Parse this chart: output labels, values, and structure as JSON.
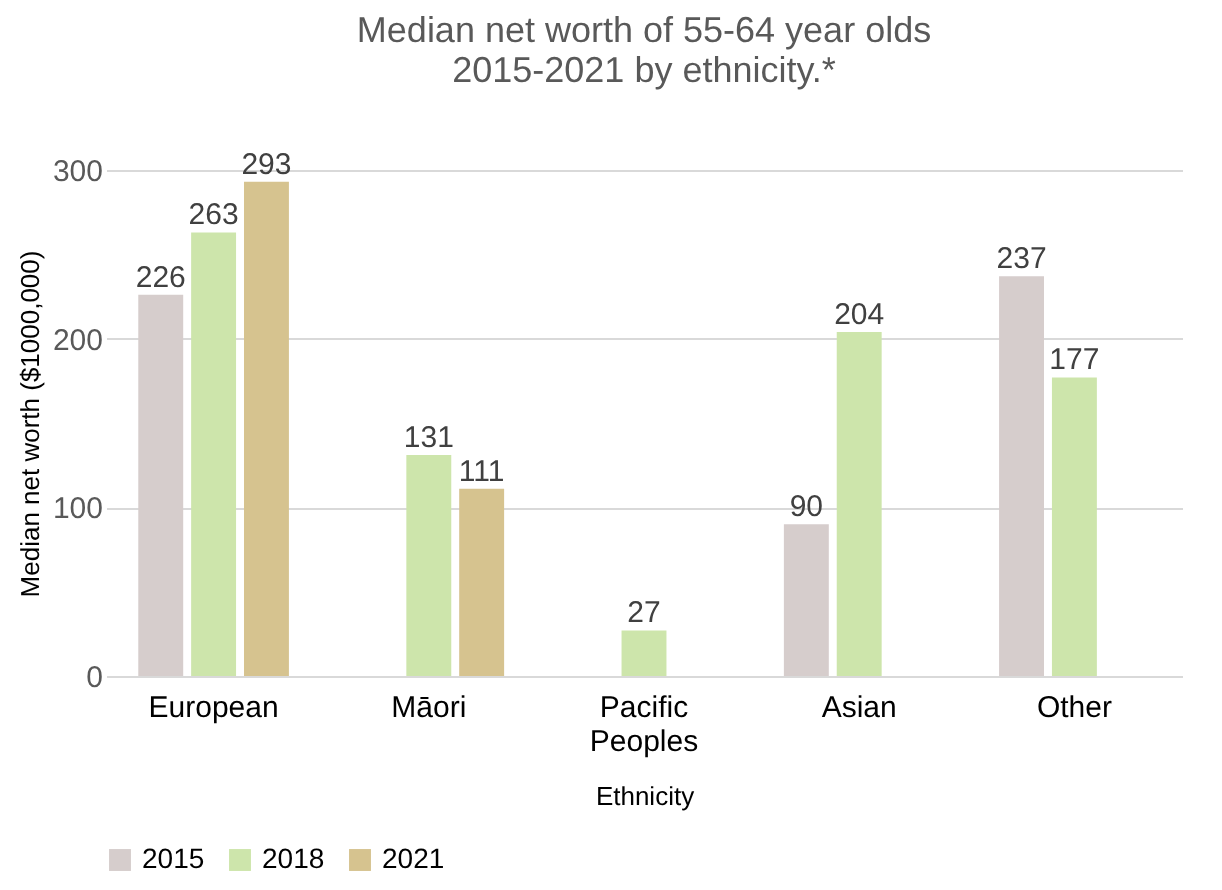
{
  "chart_data": {
    "type": "bar",
    "title": "Median net worth of 55-64 year olds 2015-2021 by ethnicity.*",
    "xlabel": "Ethnicity",
    "ylabel": "Median net worth ($1000,000)",
    "categories": [
      "European",
      "Māori",
      "Pacific Peoples",
      "Asian",
      "Other"
    ],
    "series": [
      {
        "name": "2015",
        "color": "#d6cdcc",
        "values": [
          226,
          null,
          null,
          90,
          237
        ]
      },
      {
        "name": "2018",
        "color": "#cde5ab",
        "values": [
          263,
          131,
          27,
          204,
          177
        ]
      },
      {
        "name": "2021",
        "color": "#d6c38f",
        "values": [
          293,
          111,
          null,
          null,
          null
        ]
      }
    ],
    "ylim": [
      0,
      300
    ],
    "yticks": [
      0,
      100,
      200,
      300
    ],
    "grid": "y",
    "legend": "bottom",
    "data_labels": true
  }
}
